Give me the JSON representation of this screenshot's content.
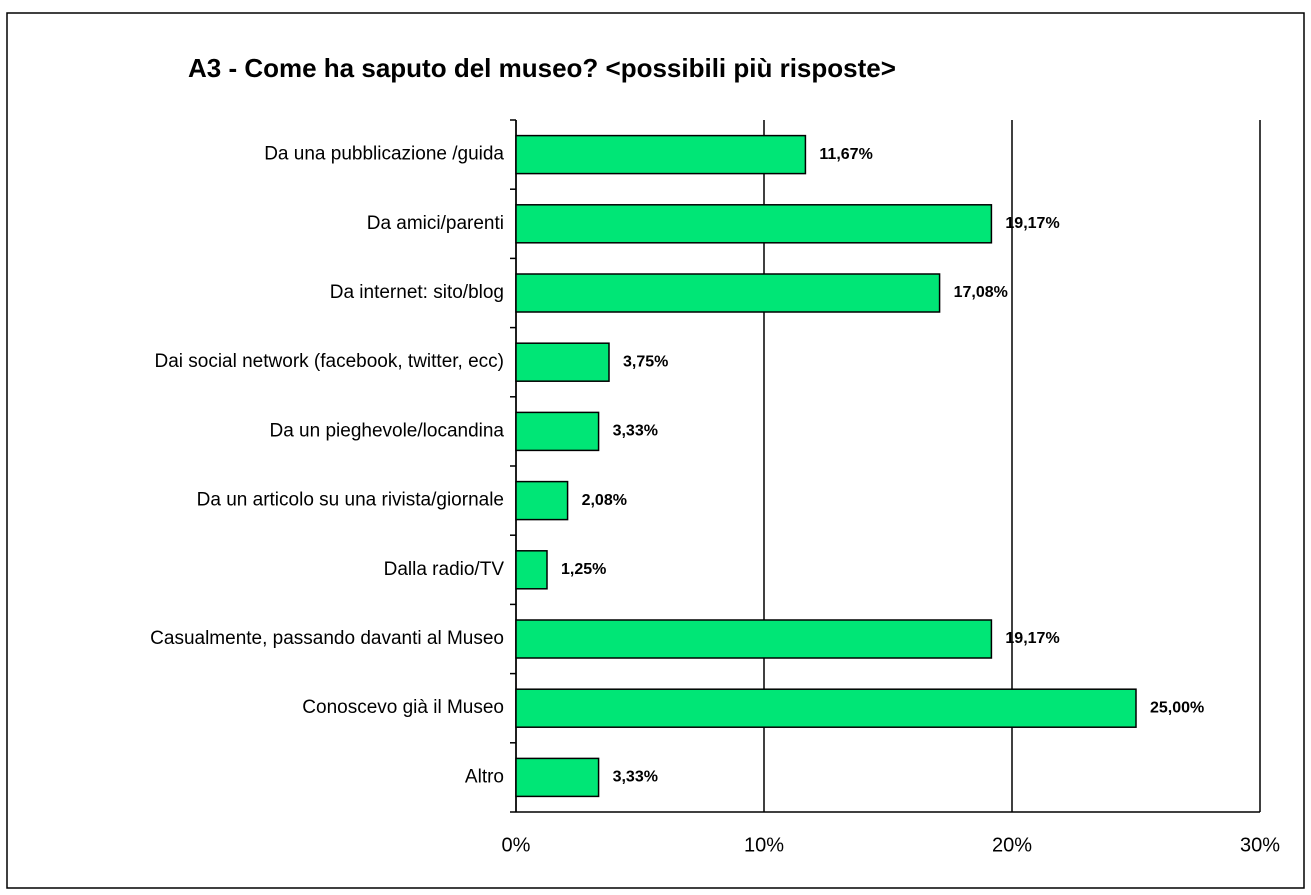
{
  "chart_data": {
    "type": "bar",
    "orientation": "horizontal",
    "title": "A3 - Come ha saputo del museo? <possibili più risposte>",
    "categories": [
      "Da una pubblicazione /guida",
      "Da amici/parenti",
      "Da internet: sito/blog",
      "Dai social network (facebook, twitter, ecc)",
      "Da un pieghevole/locandina",
      "Da un articolo su una rivista/giornale",
      "Dalla radio/TV",
      "Casualmente, passando davanti al Museo",
      "Conoscevo già il Museo",
      "Altro"
    ],
    "values": [
      11.67,
      19.17,
      17.08,
      3.75,
      3.33,
      2.08,
      1.25,
      19.17,
      25.0,
      3.33
    ],
    "value_labels": [
      "11,67%",
      "19,17%",
      "17,08%",
      "3,75%",
      "3,33%",
      "2,08%",
      "1,25%",
      "19,17%",
      "25,00%",
      "3,33%"
    ],
    "color": "#00e676",
    "xlim": [
      0,
      30
    ],
    "xticks": [
      {
        "value": 0,
        "label": "0%"
      },
      {
        "value": 10,
        "label": "10%"
      },
      {
        "value": 20,
        "label": "20%"
      },
      {
        "value": 30,
        "label": "30%"
      }
    ],
    "grid": true
  }
}
